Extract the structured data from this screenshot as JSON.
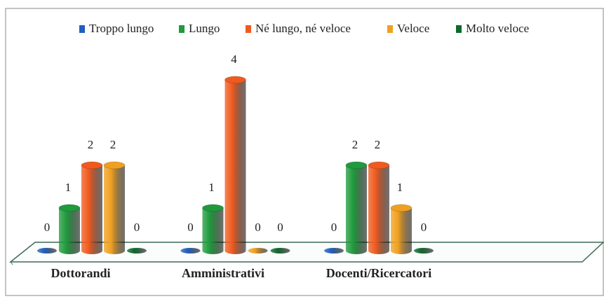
{
  "chart_data": {
    "type": "bar3d",
    "categories": [
      "Dottorandi",
      "Amministrativi",
      "Docenti/Ricercatori"
    ],
    "series": [
      {
        "name": "Troppo lungo",
        "color": "#1f5fbf",
        "values": [
          0,
          0,
          0
        ]
      },
      {
        "name": "Lungo",
        "color": "#1f9a3c",
        "values": [
          1,
          1,
          2
        ]
      },
      {
        "name": "Né lungo, né veloce",
        "color": "#f05a1e",
        "values": [
          2,
          4,
          2
        ]
      },
      {
        "name": "Veloce",
        "color": "#f0a020",
        "values": [
          2,
          0,
          1
        ]
      },
      {
        "name": "Molto veloce",
        "color": "#0c6a2c",
        "values": [
          0,
          0,
          0
        ]
      }
    ]
  }
}
